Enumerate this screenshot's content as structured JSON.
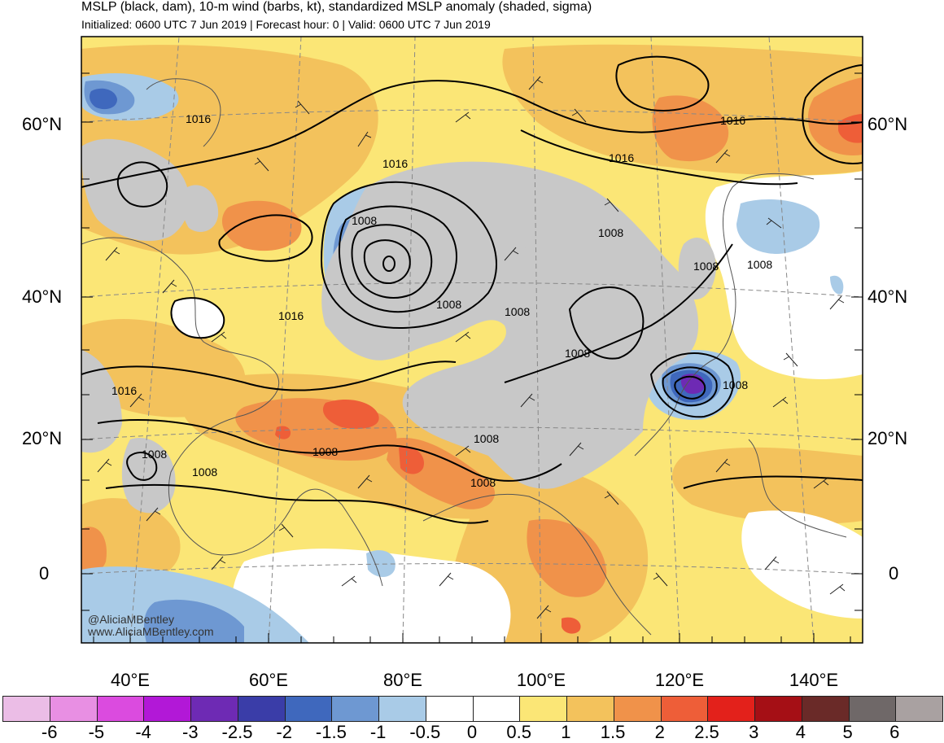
{
  "header": {
    "title": "MSLP (black, dam), 10-m wind (barbs, kt), standardized MSLP anomaly (shaded, sigma)",
    "subtitle": "Initialized: 0600 UTC 7 Jun 2019 | Forecast hour: 0 | Valid: 0600 UTC 7 Jun 2019"
  },
  "axes": {
    "lat_left": [
      "60°N",
      "40°N",
      "20°N",
      "0"
    ],
    "lat_right": [
      "60°N",
      "40°N",
      "20°N",
      "0"
    ],
    "lon": [
      "40°E",
      "60°E",
      "80°E",
      "100°E",
      "120°E",
      "140°E"
    ]
  },
  "contour_labels": [
    "1016",
    "1016",
    "1016",
    "1016",
    "1008",
    "1008",
    "1008",
    "1008",
    "1008",
    "1008",
    "1016",
    "1016",
    "1008",
    "1008",
    "1008",
    "1008",
    "1008",
    "1008",
    "1008"
  ],
  "credits": {
    "handle": "@AliciaMBentley",
    "site": "www.AliciaMBentley.com"
  },
  "colorbar": {
    "colors": [
      "#ebbde6",
      "#e88fe3",
      "#db4bdf",
      "#b218d7",
      "#6e2ab4",
      "#3a3da8",
      "#3f68bd",
      "#6e98d2",
      "#a9cbe7",
      "#ffffff",
      "#ffffff",
      "#fbe676",
      "#f3c25c",
      "#f0924a",
      "#ee5e38",
      "#e3211b",
      "#a50f15",
      "#6a2a28",
      "#6f6868",
      "#a9a1a1"
    ],
    "labels": [
      "-6",
      "-5",
      "-4",
      "-3",
      "-2.5",
      "-2",
      "-1.5",
      "-1",
      "-0.5",
      "0",
      "0.5",
      "1",
      "1.5",
      "2",
      "2.5",
      "3",
      "4",
      "5",
      "6"
    ]
  }
}
